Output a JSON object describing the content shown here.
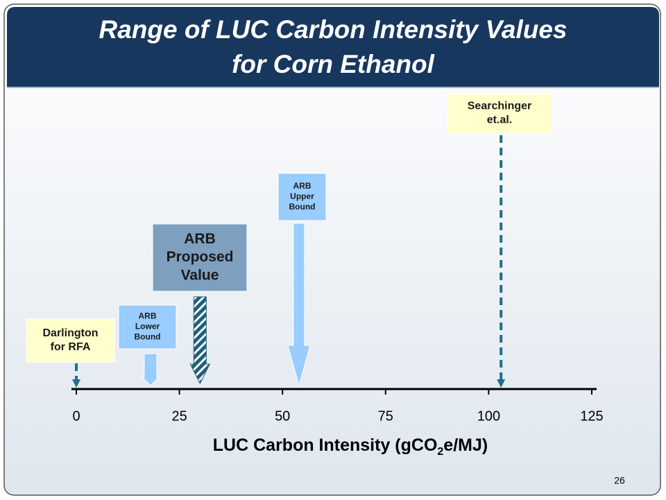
{
  "chart_data": {
    "type": "number_line",
    "title": [
      "Range of LUC Carbon Intensity Values",
      "for Corn Ethanol"
    ],
    "x_label": [
      "LUC Carbon Intensity (gCO",
      "2",
      "e/MJ)"
    ],
    "xlim": [
      0,
      125
    ],
    "xticks": [
      0,
      25,
      50,
      75,
      100,
      125
    ],
    "markers": [
      {
        "label": [
          "Darlington",
          "for RFA"
        ],
        "value": 0,
        "color": "#ffffcc",
        "arrow": "dashed"
      },
      {
        "label": [
          "ARB",
          "Lower",
          "Bound"
        ],
        "value": 18,
        "color": "#99ccff",
        "arrow": "block"
      },
      {
        "label": [
          "ARB",
          "Proposed",
          "Value"
        ],
        "value": 30,
        "color": "#7f9fbf",
        "arrow": "hatched"
      },
      {
        "label": [
          "ARB",
          "Upper",
          "Bound"
        ],
        "value": 54,
        "color": "#99ccff",
        "arrow": "block"
      },
      {
        "label": [
          "Searchinger",
          "et.al."
        ],
        "value": 103,
        "color": "#ffffcc",
        "arrow": "dashed"
      }
    ],
    "page_number": "26"
  }
}
